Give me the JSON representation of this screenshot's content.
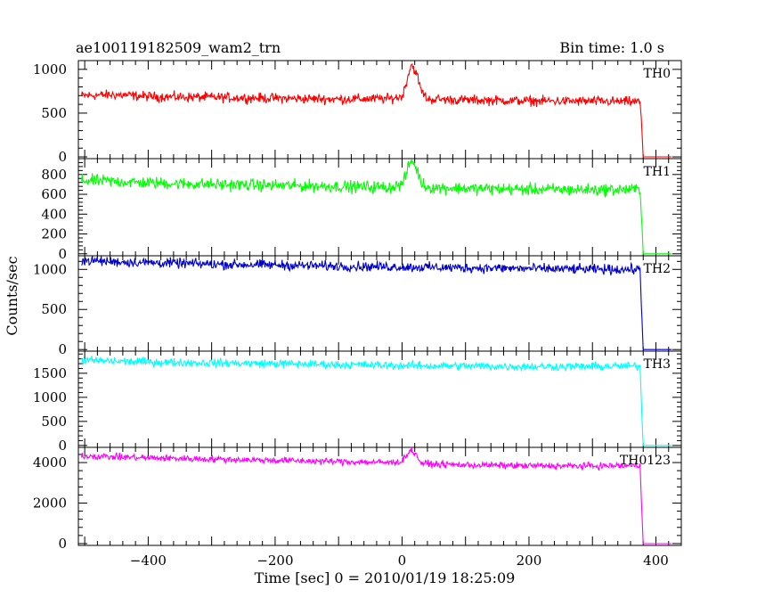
{
  "header": {
    "title": "ae100119182509_wam2_trn",
    "bin_time": "Bin time: 1.0 s"
  },
  "chart_data": {
    "type": "line",
    "xlabel": "Time [sec] 0 = 2010/01/19 18:25:09",
    "ylabel": "Counts/sec",
    "xlim": [
      -510,
      440
    ],
    "x_ticks": [
      -400,
      -200,
      0,
      200,
      400
    ],
    "x_tick_labels": [
      "−400",
      "−200",
      "0",
      "200",
      "400"
    ],
    "grid": false,
    "series": [
      {
        "name": "TH0",
        "color": "#ff0000",
        "ylim": [
          -20,
          1100
        ],
        "y_ticks": [
          0,
          500,
          1000
        ],
        "y_tick_labels": [
          "0",
          "500",
          "1000"
        ],
        "points": [
          [
            -505,
            700
          ],
          [
            -450,
            710
          ],
          [
            -400,
            690
          ],
          [
            -300,
            680
          ],
          [
            -200,
            670
          ],
          [
            -100,
            660
          ],
          [
            -20,
            665
          ],
          [
            0,
            690
          ],
          [
            5,
            800
          ],
          [
            10,
            950
          ],
          [
            15,
            1060
          ],
          [
            20,
            990
          ],
          [
            25,
            900
          ],
          [
            30,
            760
          ],
          [
            40,
            660
          ],
          [
            100,
            650
          ],
          [
            200,
            640
          ],
          [
            300,
            635
          ],
          [
            375,
            630
          ],
          [
            378,
            300
          ],
          [
            380,
            0
          ],
          [
            410,
            0
          ],
          [
            425,
            0
          ]
        ],
        "noise": 55
      },
      {
        "name": "TH1",
        "color": "#00ff00",
        "ylim": [
          -20,
          960
        ],
        "y_ticks": [
          0,
          200,
          400,
          600,
          800
        ],
        "y_tick_labels": [
          "0",
          "200",
          "400",
          "600",
          "800"
        ],
        "points": [
          [
            -505,
            740
          ],
          [
            -450,
            730
          ],
          [
            -400,
            715
          ],
          [
            -300,
            700
          ],
          [
            -200,
            690
          ],
          [
            -100,
            680
          ],
          [
            -20,
            670
          ],
          [
            0,
            700
          ],
          [
            5,
            770
          ],
          [
            10,
            880
          ],
          [
            15,
            940
          ],
          [
            20,
            900
          ],
          [
            25,
            820
          ],
          [
            30,
            720
          ],
          [
            40,
            670
          ],
          [
            100,
            660
          ],
          [
            200,
            650
          ],
          [
            300,
            645
          ],
          [
            375,
            650
          ],
          [
            378,
            300
          ],
          [
            380,
            0
          ],
          [
            410,
            0
          ],
          [
            425,
            0
          ]
        ],
        "noise": 60
      },
      {
        "name": "TH2",
        "color": "#0000cc",
        "ylim": [
          -20,
          1170
        ],
        "y_ticks": [
          0,
          500,
          1000
        ],
        "y_tick_labels": [
          "0",
          "500",
          "1000"
        ],
        "points": [
          [
            -505,
            1110
          ],
          [
            -450,
            1095
          ],
          [
            -400,
            1085
          ],
          [
            -300,
            1065
          ],
          [
            -200,
            1055
          ],
          [
            -100,
            1040
          ],
          [
            0,
            1030
          ],
          [
            100,
            1020
          ],
          [
            200,
            1010
          ],
          [
            300,
            1000
          ],
          [
            375,
            1000
          ],
          [
            378,
            400
          ],
          [
            380,
            0
          ],
          [
            410,
            0
          ],
          [
            425,
            0
          ]
        ],
        "noise": 60
      },
      {
        "name": "TH3",
        "color": "#00ffff",
        "ylim": [
          -40,
          1960
        ],
        "y_ticks": [
          0,
          500,
          1000,
          1500
        ],
        "y_tick_labels": [
          "0",
          "500",
          "1000",
          "1500"
        ],
        "points": [
          [
            -505,
            1770
          ],
          [
            -450,
            1750
          ],
          [
            -400,
            1735
          ],
          [
            -300,
            1715
          ],
          [
            -200,
            1700
          ],
          [
            -100,
            1680
          ],
          [
            0,
            1660
          ],
          [
            100,
            1650
          ],
          [
            200,
            1640
          ],
          [
            300,
            1640
          ],
          [
            375,
            1650
          ],
          [
            378,
            600
          ],
          [
            380,
            0
          ],
          [
            410,
            0
          ],
          [
            425,
            0
          ]
        ],
        "noise": 85
      },
      {
        "name": "TH0123",
        "color": "#ff00ff",
        "ylim": [
          -90,
          4750
        ],
        "y_ticks": [
          0,
          2000,
          4000
        ],
        "y_tick_labels": [
          "0",
          "2000",
          "4000"
        ],
        "points": [
          [
            -505,
            4330
          ],
          [
            -450,
            4280
          ],
          [
            -400,
            4230
          ],
          [
            -300,
            4170
          ],
          [
            -200,
            4110
          ],
          [
            -100,
            4050
          ],
          [
            -20,
            4000
          ],
          [
            0,
            4060
          ],
          [
            5,
            4300
          ],
          [
            10,
            4500
          ],
          [
            15,
            4600
          ],
          [
            20,
            4450
          ],
          [
            25,
            4250
          ],
          [
            30,
            3980
          ],
          [
            40,
            3930
          ],
          [
            100,
            3880
          ],
          [
            200,
            3840
          ],
          [
            300,
            3830
          ],
          [
            375,
            3850
          ],
          [
            378,
            1500
          ],
          [
            380,
            0
          ],
          [
            410,
            0
          ],
          [
            425,
            0
          ]
        ],
        "noise": 160
      }
    ]
  }
}
